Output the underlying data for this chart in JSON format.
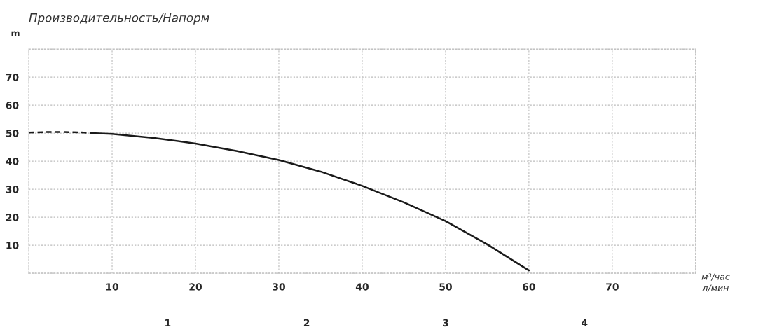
{
  "chart_data": {
    "type": "line",
    "title": "Производительность/Напорм",
    "ylabel": "m",
    "xlabel": "л/мин",
    "x2label": "м³/час",
    "series": [
      {
        "color": "#1a1a1a",
        "line_style": "dashed",
        "x": [
          0,
          2,
          4,
          6,
          8
        ],
        "values": [
          50.2,
          50.4,
          50.4,
          50.3,
          50
        ]
      },
      {
        "color": "#1a1a1a",
        "line_style": "solid",
        "x": [
          8,
          10,
          15,
          20,
          25,
          30,
          35,
          40,
          45,
          50,
          55,
          60
        ],
        "values": [
          50,
          49.7,
          48.3,
          46.3,
          43.6,
          40.4,
          36.3,
          31.2,
          25.3,
          18.6,
          10.3,
          1
        ]
      }
    ],
    "xlim": [
      0,
      80
    ],
    "xticks": [
      {
        "value": 0,
        "label": null
      },
      10,
      20,
      30,
      40,
      50,
      60,
      70,
      {
        "value": 80,
        "label": null
      }
    ],
    "ylim": [
      0,
      80
    ],
    "yticks": [
      {
        "value": 0,
        "label": null
      },
      10,
      20,
      30,
      40,
      50,
      60,
      70,
      {
        "value": 80,
        "label": null
      }
    ],
    "x2lim": [
      0,
      4.8
    ],
    "x2ticks": [
      1,
      2,
      3,
      4
    ],
    "grid": true,
    "marker": "none"
  }
}
